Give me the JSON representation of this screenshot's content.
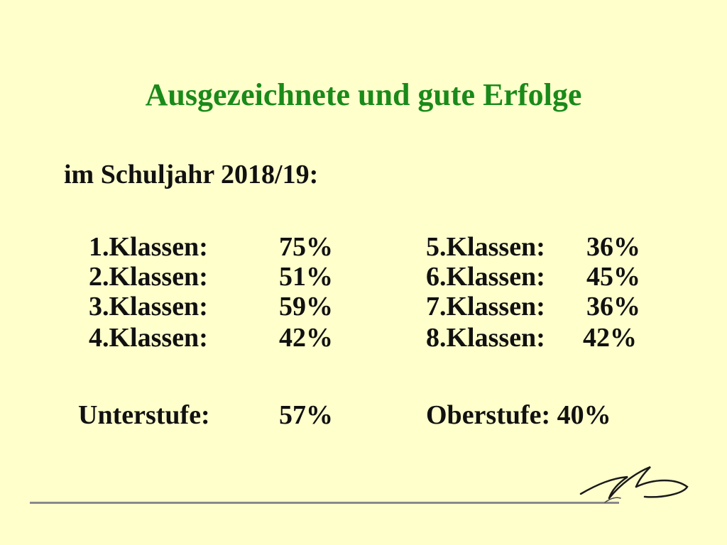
{
  "slide": {
    "title": "Ausgezeichnete und gute Erfolge",
    "subtitle": "im Schuljahr 2018/19:",
    "left_column": [
      {
        "label": "1.Klassen:",
        "value": "75%"
      },
      {
        "label": "2.Klassen:",
        "value": "51%"
      },
      {
        "label": "3.Klassen:",
        "value": "59%"
      },
      {
        "label": "4.Klassen:",
        "value": "42%"
      }
    ],
    "right_column": [
      {
        "label": "5.Klassen:",
        "value": "36%"
      },
      {
        "label": "6.Klassen:",
        "value": "45%"
      },
      {
        "label": "7.Klassen:",
        "value": "36%"
      },
      {
        "label": "8.Klassen:",
        "value": "42%"
      }
    ],
    "summary_left": {
      "label": "Unterstufe:",
      "value": "57%"
    },
    "summary_right": {
      "text": "Oberstufe: 40%"
    },
    "colors": {
      "background": "#ffffcc",
      "title": "#1a8a1a",
      "text": "#111111",
      "rule": "#8a8a8a"
    },
    "decoration_icon": "bird-swoosh-logo-icon"
  }
}
